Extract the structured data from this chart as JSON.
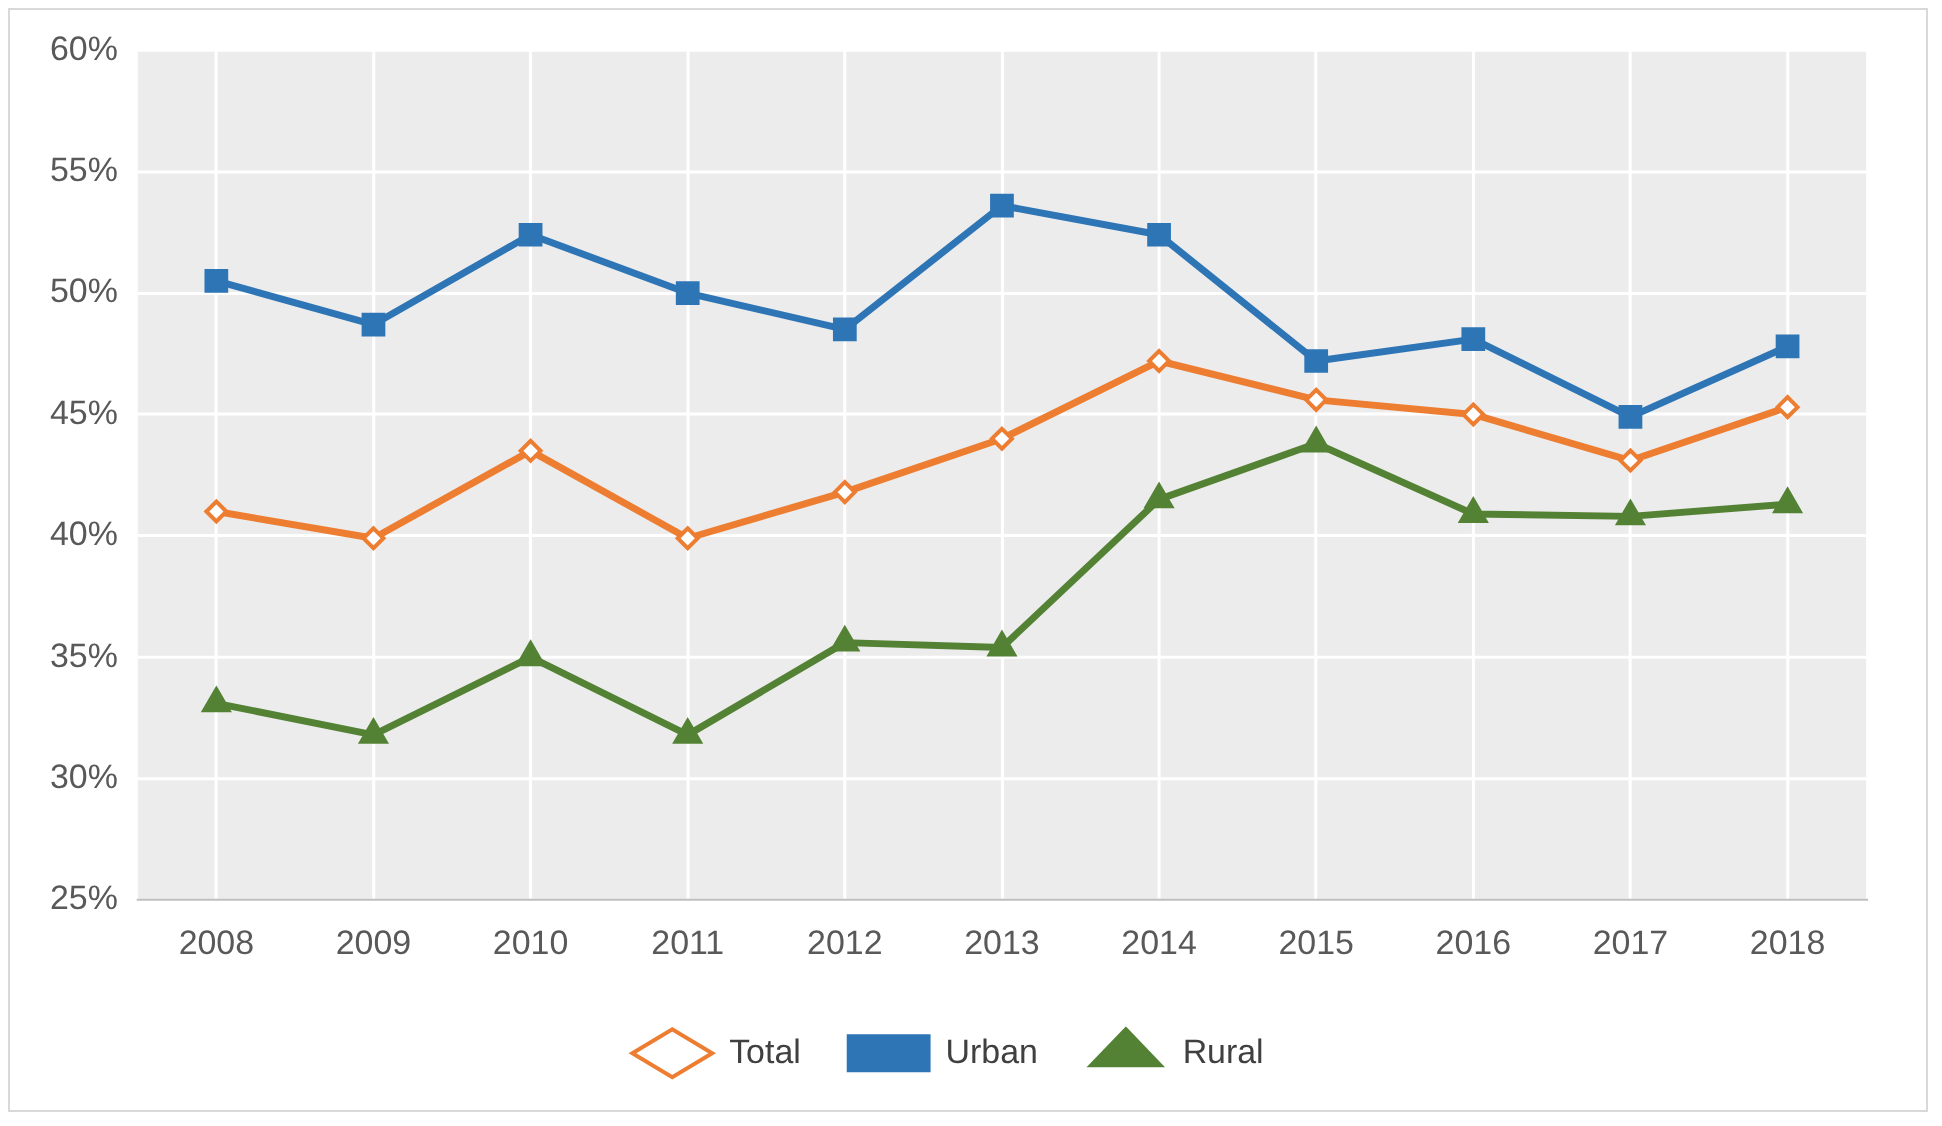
{
  "chart_data": {
    "type": "line",
    "categories": [
      "2008",
      "2009",
      "2010",
      "2011",
      "2012",
      "2013",
      "2014",
      "2015",
      "2016",
      "2017",
      "2018"
    ],
    "series": [
      {
        "name": "Total",
        "color": "#ed7d31",
        "marker": "diamond",
        "values": [
          41.0,
          39.9,
          43.5,
          39.9,
          41.8,
          44.0,
          47.2,
          45.6,
          45.0,
          43.1,
          45.3
        ]
      },
      {
        "name": "Urban",
        "color": "#2e75b6",
        "marker": "square",
        "values": [
          50.5,
          48.7,
          52.4,
          50.0,
          48.5,
          53.6,
          52.4,
          47.2,
          48.1,
          44.9,
          47.8
        ]
      },
      {
        "name": "Rural",
        "color": "#548235",
        "marker": "triangle",
        "values": [
          33.1,
          31.8,
          35.0,
          31.8,
          35.6,
          35.4,
          41.5,
          43.8,
          40.9,
          40.8,
          41.3
        ]
      }
    ],
    "ylim": [
      25,
      60
    ],
    "yticks": [
      {
        "value": 25,
        "label": "25%"
      },
      {
        "value": 30,
        "label": "30%"
      },
      {
        "value": 35,
        "label": "35%"
      },
      {
        "value": 40,
        "label": "40%"
      },
      {
        "value": 45,
        "label": "45%"
      },
      {
        "value": 50,
        "label": "50%"
      },
      {
        "value": 55,
        "label": "55%"
      },
      {
        "value": 60,
        "label": "60%"
      }
    ],
    "grid": true,
    "legend": "bottom",
    "line_style": "solid"
  }
}
